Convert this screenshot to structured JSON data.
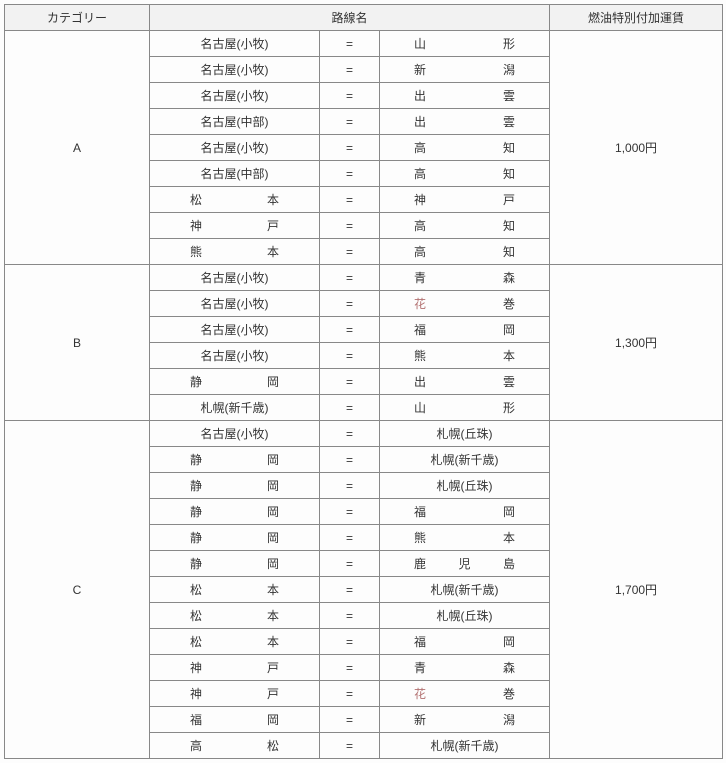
{
  "headers": {
    "category": "カテゴリー",
    "route": "路線名",
    "fare": "燃油特別付加運賃"
  },
  "eq": "=",
  "groups": [
    {
      "category": "A",
      "fare": "1,000円",
      "routes": [
        {
          "from": "名古屋(小牧)",
          "to": "山形",
          "fromSpaced": false,
          "toSpaced": true
        },
        {
          "from": "名古屋(小牧)",
          "to": "新潟",
          "fromSpaced": false,
          "toSpaced": true
        },
        {
          "from": "名古屋(小牧)",
          "to": "出雲",
          "fromSpaced": false,
          "toSpaced": true
        },
        {
          "from": "名古屋(中部)",
          "to": "出雲",
          "fromSpaced": false,
          "toSpaced": true
        },
        {
          "from": "名古屋(小牧)",
          "to": "高知",
          "fromSpaced": false,
          "toSpaced": true
        },
        {
          "from": "名古屋(中部)",
          "to": "高知",
          "fromSpaced": false,
          "toSpaced": true
        },
        {
          "from": "松本",
          "to": "神戸",
          "fromSpaced": true,
          "toSpaced": true
        },
        {
          "from": "神戸",
          "to": "高知",
          "fromSpaced": true,
          "toSpaced": true
        },
        {
          "from": "熊本",
          "to": "高知",
          "fromSpaced": true,
          "toSpaced": true
        }
      ]
    },
    {
      "category": "B",
      "fare": "1,300円",
      "routes": [
        {
          "from": "名古屋(小牧)",
          "to": "青森",
          "fromSpaced": false,
          "toSpaced": true
        },
        {
          "from": "名古屋(小牧)",
          "to": "花巻",
          "fromSpaced": false,
          "toSpaced": true,
          "toSoft": true
        },
        {
          "from": "名古屋(小牧)",
          "to": "福岡",
          "fromSpaced": false,
          "toSpaced": true
        },
        {
          "from": "名古屋(小牧)",
          "to": "熊本",
          "fromSpaced": false,
          "toSpaced": true
        },
        {
          "from": "静岡",
          "to": "出雲",
          "fromSpaced": true,
          "toSpaced": true
        },
        {
          "from": "札幌(新千歳)",
          "to": "山形",
          "fromSpaced": false,
          "toSpaced": true
        }
      ]
    },
    {
      "category": "C",
      "fare": "1,700円",
      "routes": [
        {
          "from": "名古屋(小牧)",
          "to": "札幌(丘珠)",
          "fromSpaced": false,
          "toSpaced": false
        },
        {
          "from": "静岡",
          "to": "札幌(新千歳)",
          "fromSpaced": true,
          "toSpaced": false
        },
        {
          "from": "静岡",
          "to": "札幌(丘珠)",
          "fromSpaced": true,
          "toSpaced": false
        },
        {
          "from": "静岡",
          "to": "福岡",
          "fromSpaced": true,
          "toSpaced": true
        },
        {
          "from": "静岡",
          "to": "熊本",
          "fromSpaced": true,
          "toSpaced": true
        },
        {
          "from": "静岡",
          "to": "鹿児島",
          "fromSpaced": true,
          "toSpaced": true
        },
        {
          "from": "松本",
          "to": "札幌(新千歳)",
          "fromSpaced": true,
          "toSpaced": false
        },
        {
          "from": "松本",
          "to": "札幌(丘珠)",
          "fromSpaced": true,
          "toSpaced": false
        },
        {
          "from": "松本",
          "to": "福岡",
          "fromSpaced": true,
          "toSpaced": true
        },
        {
          "from": "神戸",
          "to": "青森",
          "fromSpaced": true,
          "toSpaced": true
        },
        {
          "from": "神戸",
          "to": "花巻",
          "fromSpaced": true,
          "toSpaced": true,
          "toSoft": true
        },
        {
          "from": "福岡",
          "to": "新潟",
          "fromSpaced": true,
          "toSpaced": true
        },
        {
          "from": "高松",
          "to": "札幌(新千歳)",
          "fromSpaced": true,
          "toSpaced": false
        }
      ]
    }
  ]
}
